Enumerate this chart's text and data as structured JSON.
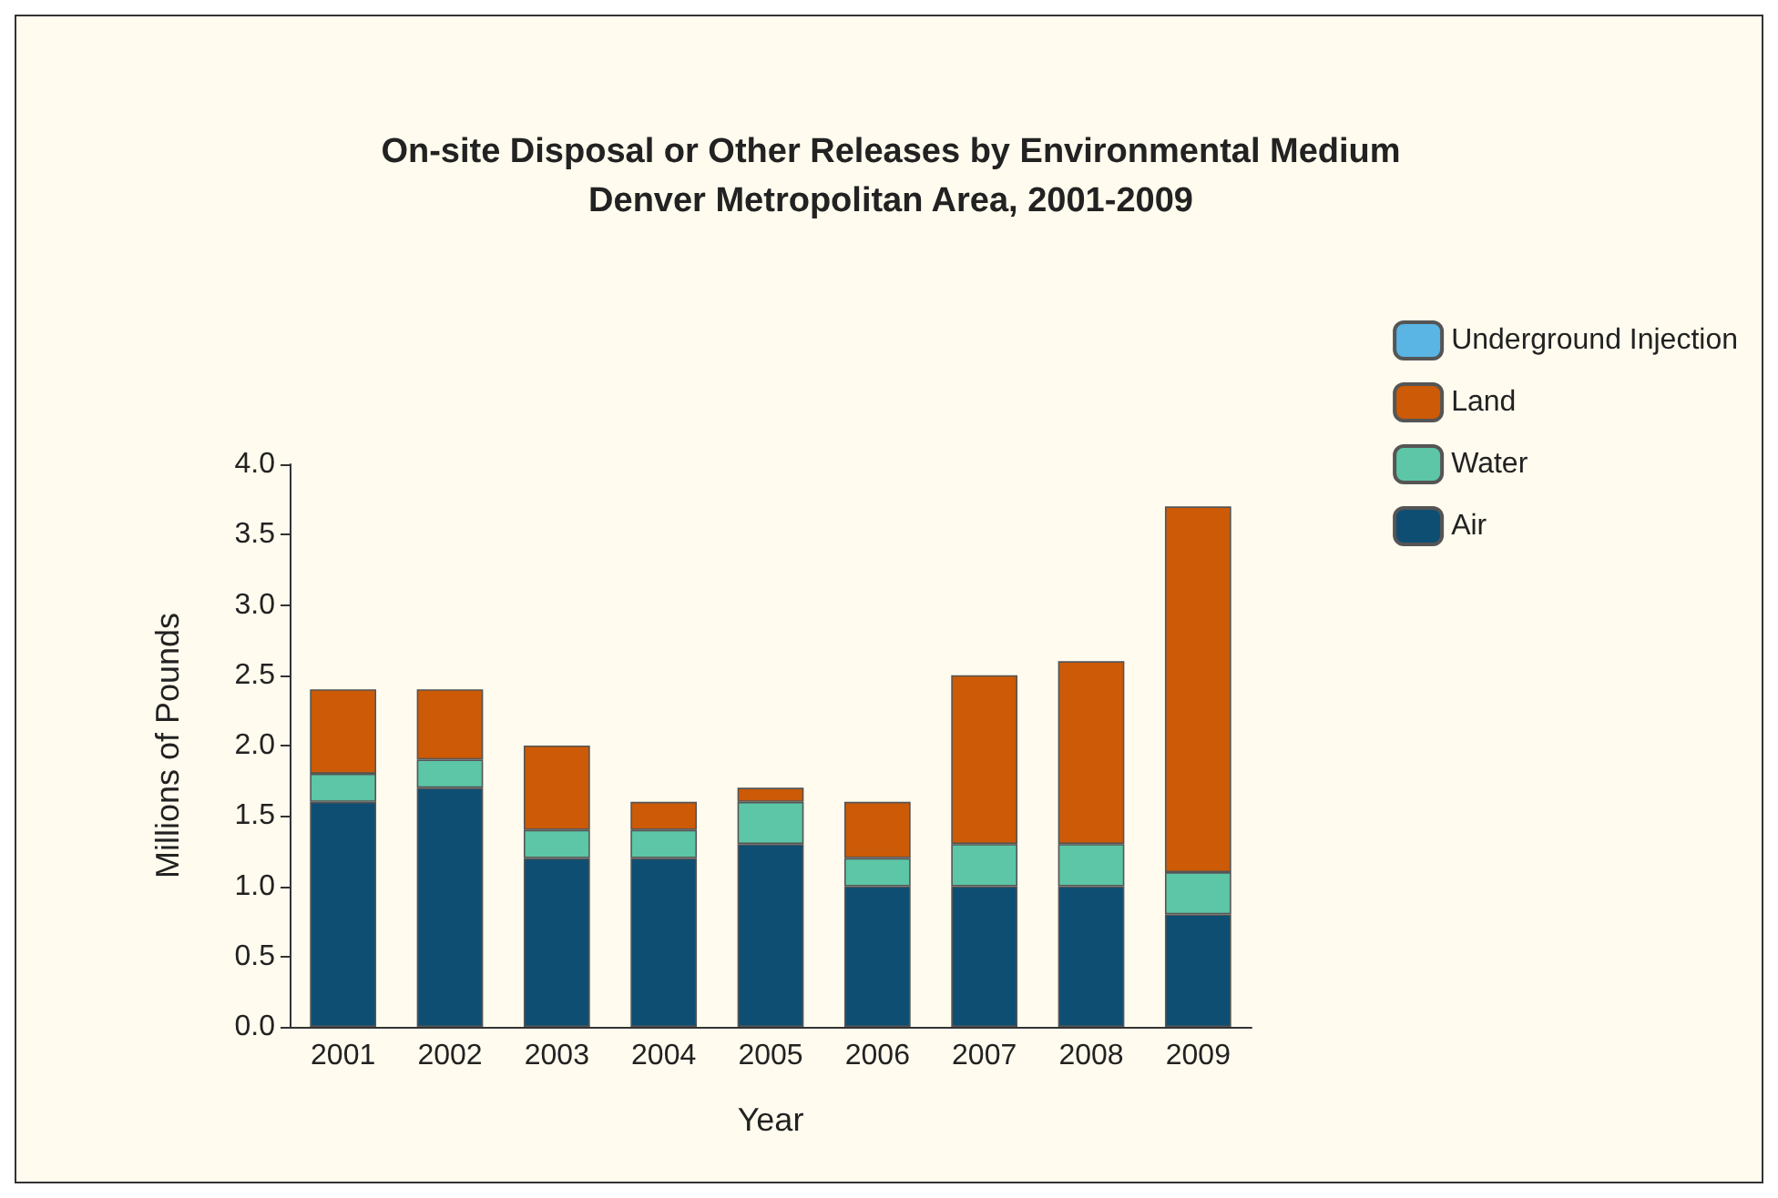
{
  "chart_data": {
    "type": "bar",
    "title": "On-site Disposal or Other Releases by Environmental Medium",
    "subtitle": "Denver Metropolitan Area, 2001-2009",
    "xlabel": "Year",
    "ylabel": "Millions of Pounds",
    "categories": [
      "2001",
      "2002",
      "2003",
      "2004",
      "2005",
      "2006",
      "2007",
      "2008",
      "2009"
    ],
    "stacked": true,
    "series": [
      {
        "name": "Air",
        "color": "#0e4e73",
        "values": [
          1.6,
          1.7,
          1.2,
          1.2,
          1.3,
          1.0,
          1.0,
          1.0,
          0.8
        ]
      },
      {
        "name": "Water",
        "color": "#5cc6a6",
        "values": [
          0.2,
          0.2,
          0.2,
          0.2,
          0.3,
          0.2,
          0.3,
          0.3,
          0.3
        ]
      },
      {
        "name": "Land",
        "color": "#cc5a06",
        "values": [
          0.6,
          0.5,
          0.6,
          0.2,
          0.1,
          0.4,
          1.2,
          1.3,
          2.6
        ]
      },
      {
        "name": "Underground Injection",
        "color": "#5ab4e4",
        "values": [
          null,
          null,
          null,
          null,
          null,
          null,
          null,
          null,
          null
        ]
      }
    ],
    "ylim": [
      0,
      4
    ],
    "yticks": [
      {
        "value": 0,
        "label": "0.0"
      },
      0.5,
      {
        "value": 1,
        "label": "1.0"
      },
      1.5,
      {
        "value": 2,
        "label": "2.0"
      },
      2.5,
      {
        "value": 3,
        "label": "3.0"
      },
      3.5,
      {
        "value": 4,
        "label": "4.0"
      }
    ],
    "grid": false,
    "legend": "top right"
  }
}
